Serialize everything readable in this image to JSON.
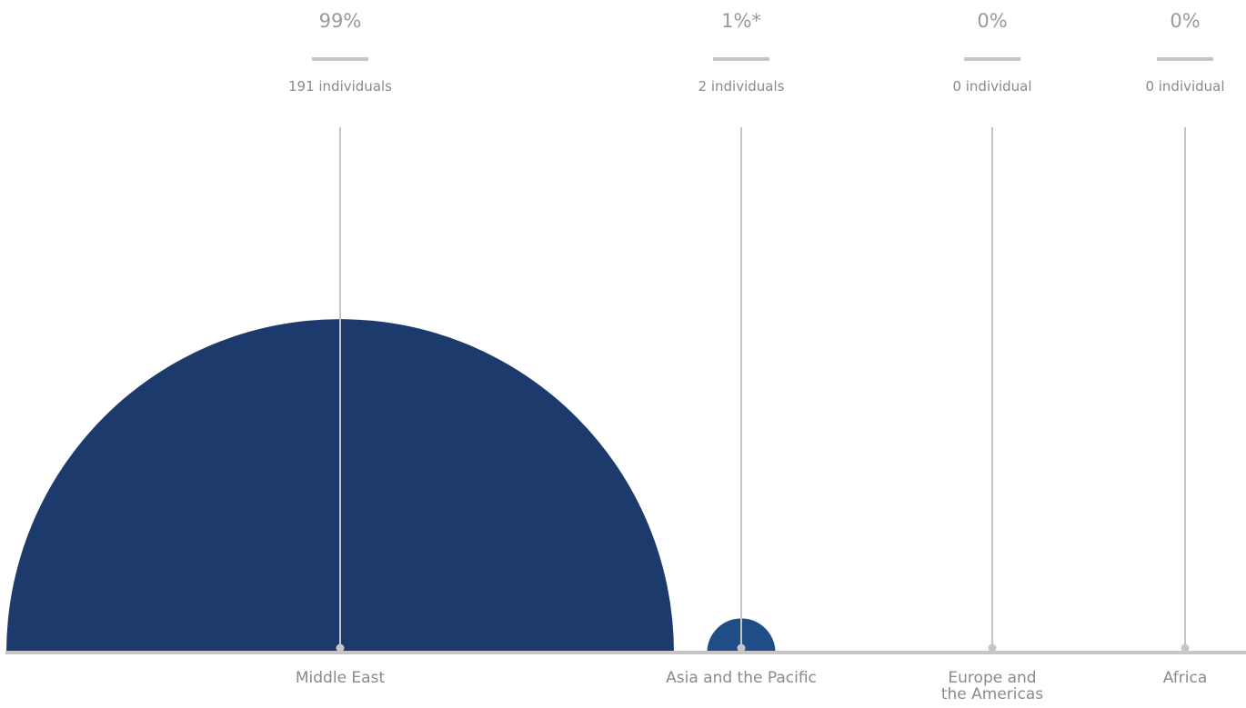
{
  "chart_data": {
    "type": "semicircle-proportional",
    "categories": [
      "Middle East",
      "Asia and the Pacific",
      "Europe and\nthe Americas",
      "Africa"
    ],
    "values": [
      191,
      2,
      0,
      0
    ],
    "percent_labels": [
      "99%",
      "1%*",
      "0%",
      "0%"
    ],
    "count_labels": [
      "191 individuals",
      "2 individuals",
      "0 individual",
      "0 individual"
    ],
    "colors": {
      "Middle East": "#1d3a6c",
      "Asia and the Pacific": "#1f4e87",
      "guide_line": "#c6c6c6",
      "baseline": "#c6c6c6",
      "dash": "#c6c6c6"
    }
  }
}
